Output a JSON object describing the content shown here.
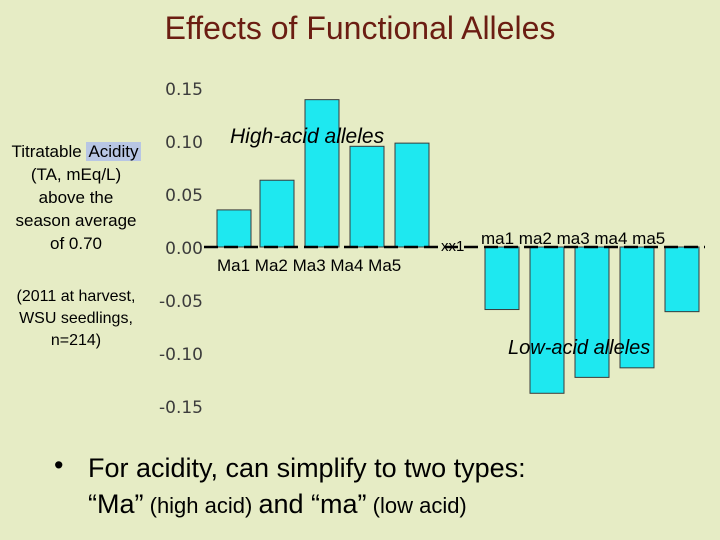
{
  "title": "Effects of Functional Alleles",
  "ylabel": {
    "prefix": "Titratable ",
    "highlight": "Acidity",
    "line2": "(TA, mEq/L)",
    "line3": "above the",
    "line4": "season average",
    "line5": "of 0.70"
  },
  "note": {
    "line1": "(2011 at harvest,",
    "line2": "WSU seedlings,",
    "line3": "n=214)"
  },
  "chart_data": {
    "type": "bar",
    "title": "Effects of Functional Alleles",
    "ylabel": "Titratable Acidity (TA, mEq/L) above the season average of 0.70",
    "ylim": [
      -0.15,
      0.15
    ],
    "yticks": [
      "0.15",
      "0.10",
      "0.05",
      "0.00",
      "-0.05",
      "-0.10",
      "-0.15"
    ],
    "grid": false,
    "groups": [
      {
        "name": "High-acid alleles",
        "axis_label": "Ma1 Ma2 Ma3 Ma4 Ma5",
        "categories": [
          "Ma1",
          "Ma2",
          "Ma3",
          "Ma4",
          "Ma5"
        ],
        "values": [
          0.035,
          0.063,
          0.139,
          0.095,
          0.098
        ]
      },
      {
        "name": "Low-acid alleles",
        "axis_label": "ma1 ma2 ma3 ma4 ma5",
        "prefix_label": "xx1",
        "categories": [
          "ma1",
          "ma2",
          "ma3",
          "ma4",
          "ma5"
        ],
        "values": [
          -0.059,
          -0.138,
          -0.123,
          -0.114,
          -0.061
        ]
      }
    ],
    "bar_color": "#1ee8f0",
    "bar_edge": "#3a3a3a"
  },
  "bullet": {
    "symbol": "•",
    "line1": "For acidity, can simplify to two types:",
    "ma_big": "“Ma”",
    "ma_small": " (high acid) ",
    "and": "and ",
    "ma2_big": "“ma”",
    "ma2_small": " (low acid)"
  }
}
